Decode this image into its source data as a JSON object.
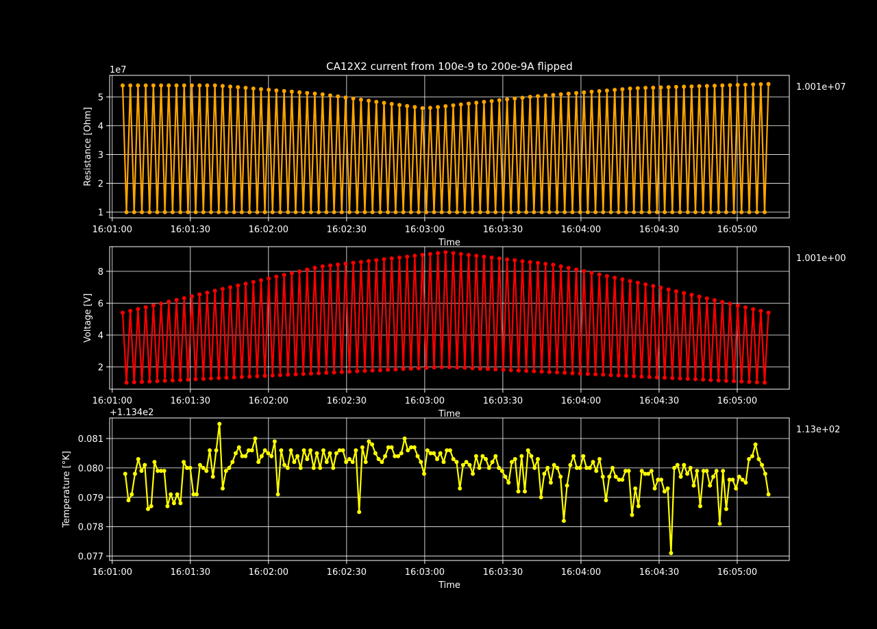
{
  "figure": {
    "title": "CA12X2 current from 100e-9 to 200e-9A flipped",
    "background": "#000000",
    "foreground": "#ffffff"
  },
  "chart_data": [
    {
      "type": "line",
      "ylabel": "Resistance [Ohm]",
      "xlabel": "Time",
      "y_multiplier_label": "1e7",
      "right_label": "1.001e+07",
      "color": "#ffa500",
      "marker": "circle",
      "grid": true,
      "x_range": [
        "16:00:59",
        "16:05:20"
      ],
      "ylim": [
        0.8,
        5.75
      ],
      "y_scale": 10000000,
      "xticks": [
        "16:01:00",
        "16:01:30",
        "16:02:00",
        "16:02:30",
        "16:03:00",
        "16:03:30",
        "16:04:00",
        "16:04:30",
        "16:05:00"
      ],
      "yticks": [
        "1",
        "2",
        "3",
        "4",
        "5"
      ],
      "series": [
        {
          "pattern": "alternating",
          "x_start": "16:01:04",
          "x_end": "16:05:12",
          "high_envelope": {
            "x": [
              "16:01:04",
              "16:01:40",
              "16:02:20",
              "16:03:00",
              "16:03:40",
              "16:04:20",
              "16:05:12"
            ],
            "y": [
              54000000,
              54000000,
              51000000,
              46000000,
              50000000,
              53000000,
              54500000
            ]
          },
          "low_values": 10000000,
          "cycles": 84
        }
      ]
    },
    {
      "type": "line",
      "ylabel": "Voltage [V]",
      "xlabel": "Time",
      "right_label": "1.001e+00",
      "color": "#ff0000",
      "marker": "circle",
      "grid": true,
      "x_range": [
        "16:00:59",
        "16:05:20"
      ],
      "ylim": [
        0.6,
        9.55
      ],
      "xticks": [
        "16:01:00",
        "16:01:30",
        "16:02:00",
        "16:02:30",
        "16:03:00",
        "16:03:30",
        "16:04:00",
        "16:04:30",
        "16:05:00"
      ],
      "yticks": [
        "2",
        "4",
        "6",
        "8"
      ],
      "series": [
        {
          "pattern": "alternating",
          "x_start": "16:01:04",
          "x_end": "16:05:12",
          "high_envelope": {
            "x": [
              "16:01:04",
              "16:01:40",
              "16:02:20",
              "16:03:08",
              "16:03:50",
              "16:04:30",
              "16:05:12"
            ],
            "y": [
              5.4,
              6.8,
              8.3,
              9.2,
              8.4,
              7.0,
              5.4
            ]
          },
          "low_envelope": {
            "x": [
              "16:01:04",
              "16:03:08",
              "16:05:12"
            ],
            "y": [
              1.0,
              2.0,
              1.0
            ]
          },
          "cycles": 84
        }
      ]
    },
    {
      "type": "line",
      "ylabel": "Temperature [°K]",
      "xlabel": "Time",
      "y_offset_label": "+1.134e2",
      "right_label": "1.13e+02",
      "color": "#ffff00",
      "marker": "circle",
      "grid": true,
      "x_range": [
        "16:00:59",
        "16:05:20"
      ],
      "ylim": [
        0.07685,
        0.0817
      ],
      "xticks": [
        "16:01:00",
        "16:01:30",
        "16:02:00",
        "16:02:30",
        "16:03:00",
        "16:03:30",
        "16:04:00",
        "16:04:30",
        "16:05:00"
      ],
      "yticks": [
        "0.077",
        "0.078",
        "0.079",
        "0.080",
        "0.081"
      ],
      "series": [
        {
          "x_start": "16:01:05",
          "x_end": "16:05:12",
          "y": [
            0.0798,
            0.0789,
            0.0791,
            0.0798,
            0.0803,
            0.0799,
            0.0801,
            0.0786,
            0.0787,
            0.0802,
            0.0799,
            0.0799,
            0.0799,
            0.0787,
            0.0791,
            0.0788,
            0.0791,
            0.0788,
            0.0802,
            0.08,
            0.08,
            0.0791,
            0.0791,
            0.0801,
            0.08,
            0.0799,
            0.0806,
            0.0797,
            0.0806,
            0.0815,
            0.0793,
            0.0799,
            0.08,
            0.0802,
            0.0805,
            0.0807,
            0.0804,
            0.0804,
            0.0806,
            0.0806,
            0.081,
            0.0802,
            0.0804,
            0.0806,
            0.0805,
            0.0804,
            0.0809,
            0.0791,
            0.0806,
            0.0801,
            0.08,
            0.0806,
            0.0802,
            0.0804,
            0.08,
            0.0806,
            0.0803,
            0.0806,
            0.08,
            0.0805,
            0.08,
            0.0806,
            0.0802,
            0.0805,
            0.08,
            0.0805,
            0.0806,
            0.0806,
            0.0802,
            0.0803,
            0.0802,
            0.0806,
            0.0785,
            0.0807,
            0.0802,
            0.0809,
            0.0808,
            0.0805,
            0.0803,
            0.0802,
            0.0804,
            0.0807,
            0.0807,
            0.0804,
            0.0804,
            0.0805,
            0.081,
            0.0806,
            0.0807,
            0.0807,
            0.0804,
            0.0802,
            0.0798,
            0.0806,
            0.0805,
            0.0805,
            0.0803,
            0.0805,
            0.0802,
            0.0806,
            0.0806,
            0.0803,
            0.0802,
            0.0793,
            0.0801,
            0.0802,
            0.0801,
            0.0798,
            0.0804,
            0.08,
            0.0804,
            0.0803,
            0.08,
            0.0802,
            0.0804,
            0.08,
            0.0799,
            0.0797,
            0.0795,
            0.0802,
            0.0803,
            0.0792,
            0.0804,
            0.0792,
            0.0806,
            0.0804,
            0.08,
            0.0803,
            0.079,
            0.0798,
            0.08,
            0.0795,
            0.0801,
            0.08,
            0.0797,
            0.0782,
            0.0794,
            0.0801,
            0.0804,
            0.08,
            0.08,
            0.0804,
            0.08,
            0.08,
            0.0802,
            0.0799,
            0.0803,
            0.0797,
            0.0789,
            0.0797,
            0.08,
            0.0797,
            0.0796,
            0.0796,
            0.0799,
            0.0799,
            0.0784,
            0.0793,
            0.0787,
            0.0799,
            0.0798,
            0.0798,
            0.0799,
            0.0793,
            0.0796,
            0.0796,
            0.0792,
            0.0793,
            0.0771,
            0.08,
            0.0801,
            0.0797,
            0.0801,
            0.0798,
            0.08,
            0.0794,
            0.0799,
            0.0787,
            0.0799,
            0.0799,
            0.0794,
            0.0797,
            0.0799,
            0.0781,
            0.0799,
            0.0786,
            0.0796,
            0.0796,
            0.0793,
            0.0797,
            0.0796,
            0.0795,
            0.0803,
            0.0804,
            0.0808,
            0.0803,
            0.0801,
            0.0798,
            0.0791
          ]
        }
      ]
    }
  ]
}
